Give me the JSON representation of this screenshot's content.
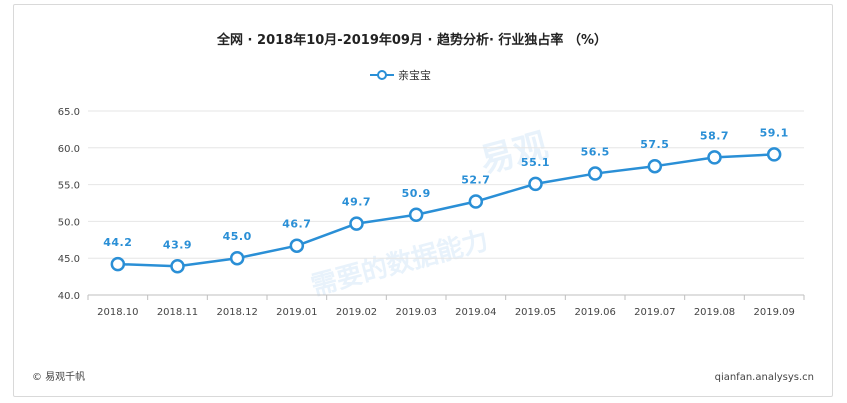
{
  "chart_data": {
    "type": "line",
    "title": "全网 · 2018年10月-2019年09月 · 趋势分析· 行业独占率 （%）",
    "categories": [
      "2018.10",
      "2018.11",
      "2018.12",
      "2019.01",
      "2019.02",
      "2019.03",
      "2019.04",
      "2019.05",
      "2019.06",
      "2019.07",
      "2019.08",
      "2019.09"
    ],
    "series": [
      {
        "name": "亲宝宝",
        "values": [
          44.2,
          43.9,
          45.0,
          46.7,
          49.7,
          50.9,
          52.7,
          55.1,
          56.5,
          57.5,
          58.7,
          59.1
        ]
      }
    ],
    "data_labels": [
      "44.2",
      "43.9",
      "45.0",
      "46.7",
      "49.7",
      "50.9",
      "52.7",
      "55.1",
      "56.5",
      "57.5",
      "58.7",
      "59.1"
    ],
    "y_ticks": [
      "40.0",
      "45.0",
      "50.0",
      "55.0",
      "60.0",
      "65.0"
    ],
    "ylim": [
      40,
      65
    ],
    "xlabel": "",
    "ylabel": "",
    "grid": true,
    "legend_position": "top-center",
    "colors": {
      "line": "#2a8fd6",
      "marker_fill": "#ffffff",
      "grid": "#e6e6e6"
    }
  },
  "footer": {
    "copyright": "© 易观千帆",
    "url": "qianfan.analysys.cn"
  },
  "watermark": {
    "brand": "易观",
    "slogan": "需要的数据能力"
  }
}
